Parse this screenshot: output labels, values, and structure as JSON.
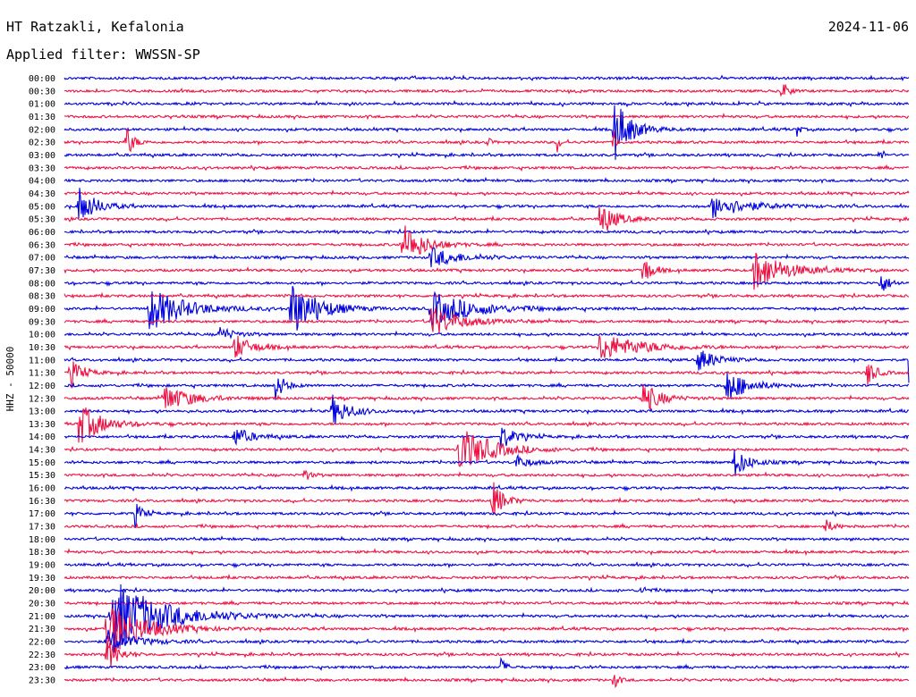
{
  "chart_data": {
    "type": "line",
    "title": "HT Ratzakli, Kefalonia",
    "date": "2024-11-06",
    "subtitle": "Applied filter: WWSSN-SP",
    "ylabel": "HHZ - 50000",
    "tick_labels": [
      "00:00",
      "00:30",
      "01:00",
      "01:30",
      "02:00",
      "02:30",
      "03:00",
      "03:30",
      "04:00",
      "04:30",
      "05:00",
      "05:30",
      "06:00",
      "06:30",
      "07:00",
      "07:30",
      "08:00",
      "08:30",
      "09:00",
      "09:30",
      "10:00",
      "10:30",
      "11:00",
      "11:30",
      "12:00",
      "12:30",
      "13:00",
      "13:30",
      "14:00",
      "14:30",
      "15:00",
      "15:30",
      "16:00",
      "16:30",
      "17:00",
      "17:30",
      "18:00",
      "18:30",
      "19:00",
      "19:30",
      "20:00",
      "20:30",
      "21:00",
      "21:30",
      "22:00",
      "22:30",
      "23:00",
      "23:30"
    ],
    "trace_colors": [
      "#0000dd",
      "#ee1144"
    ],
    "trace_minutes": 30,
    "events": [
      {
        "row": 1,
        "minute": 25.5,
        "amp": 0.9,
        "dur": 0.4
      },
      {
        "row": 4,
        "minute": 19.5,
        "amp": 2.6,
        "dur": 1.2
      },
      {
        "row": 4,
        "minute": 26,
        "amp": 0.8,
        "dur": 0.2
      },
      {
        "row": 5,
        "minute": 2.2,
        "amp": 1.3,
        "dur": 0.5
      },
      {
        "row": 5,
        "minute": 15,
        "amp": 0.7,
        "dur": 0.2
      },
      {
        "row": 5,
        "minute": 17.5,
        "amp": 0.8,
        "dur": 0.2
      },
      {
        "row": 5,
        "minute": 19.5,
        "amp": 0.9,
        "dur": 0.2
      },
      {
        "row": 6,
        "minute": 29,
        "amp": 0.7,
        "dur": 0.2
      },
      {
        "row": 9,
        "minute": 30,
        "amp": 0.9,
        "dur": 0.4
      },
      {
        "row": 10,
        "minute": 0.5,
        "amp": 1.6,
        "dur": 1.2
      },
      {
        "row": 10,
        "minute": 23,
        "amp": 0.9,
        "dur": 2.5
      },
      {
        "row": 11,
        "minute": 19,
        "amp": 1.3,
        "dur": 1.2
      },
      {
        "row": 13,
        "minute": 12,
        "amp": 1.8,
        "dur": 1.5
      },
      {
        "row": 14,
        "minute": 13,
        "amp": 0.8,
        "dur": 2.0
      },
      {
        "row": 15,
        "minute": 20.5,
        "amp": 1.5,
        "dur": 0.6
      },
      {
        "row": 15,
        "minute": 24.5,
        "amp": 1.6,
        "dur": 2.2
      },
      {
        "row": 16,
        "minute": 29,
        "amp": 0.9,
        "dur": 0.6
      },
      {
        "row": 18,
        "minute": 3,
        "amp": 1.8,
        "dur": 2.5
      },
      {
        "row": 18,
        "minute": 8,
        "amp": 2.2,
        "dur": 2.0
      },
      {
        "row": 18,
        "minute": 13,
        "amp": 1.4,
        "dur": 3.0
      },
      {
        "row": 19,
        "minute": 13,
        "amp": 1.3,
        "dur": 2.0
      },
      {
        "row": 20,
        "minute": 5.5,
        "amp": 0.6,
        "dur": 1.0
      },
      {
        "row": 21,
        "minute": 6,
        "amp": 1.1,
        "dur": 1.2
      },
      {
        "row": 21,
        "minute": 19,
        "amp": 1.1,
        "dur": 3.0
      },
      {
        "row": 22,
        "minute": 22.5,
        "amp": 1.0,
        "dur": 1.2
      },
      {
        "row": 22,
        "minute": 30,
        "amp": 2.0,
        "dur": 0.6
      },
      {
        "row": 23,
        "minute": 0.2,
        "amp": 1.2,
        "dur": 0.8
      },
      {
        "row": 23,
        "minute": 28.5,
        "amp": 1.2,
        "dur": 0.6
      },
      {
        "row": 24,
        "minute": 7.5,
        "amp": 1.3,
        "dur": 0.6
      },
      {
        "row": 24,
        "minute": 23.5,
        "amp": 1.4,
        "dur": 1.5
      },
      {
        "row": 25,
        "minute": 3.5,
        "amp": 1.1,
        "dur": 2.0
      },
      {
        "row": 25,
        "minute": 20.5,
        "amp": 1.4,
        "dur": 1.2
      },
      {
        "row": 26,
        "minute": 9.5,
        "amp": 1.3,
        "dur": 1.2
      },
      {
        "row": 27,
        "minute": 0.5,
        "amp": 1.7,
        "dur": 1.6
      },
      {
        "row": 28,
        "minute": 6,
        "amp": 0.8,
        "dur": 1.2
      },
      {
        "row": 28,
        "minute": 15.5,
        "amp": 1.0,
        "dur": 1.0
      },
      {
        "row": 29,
        "minute": 14,
        "amp": 2.0,
        "dur": 2.2
      },
      {
        "row": 30,
        "minute": 16,
        "amp": 0.6,
        "dur": 1.0
      },
      {
        "row": 30,
        "minute": 23.8,
        "amp": 1.2,
        "dur": 1.0
      },
      {
        "row": 31,
        "minute": 8.5,
        "amp": 0.6,
        "dur": 0.4
      },
      {
        "row": 33,
        "minute": 15.2,
        "amp": 1.6,
        "dur": 0.8
      },
      {
        "row": 34,
        "minute": 2.5,
        "amp": 1.0,
        "dur": 0.5
      },
      {
        "row": 35,
        "minute": 27,
        "amp": 0.6,
        "dur": 0.6
      },
      {
        "row": 40,
        "minute": 20.5,
        "amp": 0.6,
        "dur": 0.3
      },
      {
        "row": 42,
        "minute": 1.6,
        "amp": 3.2,
        "dur": 3.5
      },
      {
        "row": 43,
        "minute": 1.5,
        "amp": 2.4,
        "dur": 2.5
      },
      {
        "row": 44,
        "minute": 1.5,
        "amp": 0.9,
        "dur": 2.0
      },
      {
        "row": 45,
        "minute": 1.5,
        "amp": 1.4,
        "dur": 0.8
      },
      {
        "row": 46,
        "minute": 15.5,
        "amp": 0.7,
        "dur": 0.4
      },
      {
        "row": 47,
        "minute": 19.5,
        "amp": 0.9,
        "dur": 0.3
      }
    ]
  }
}
